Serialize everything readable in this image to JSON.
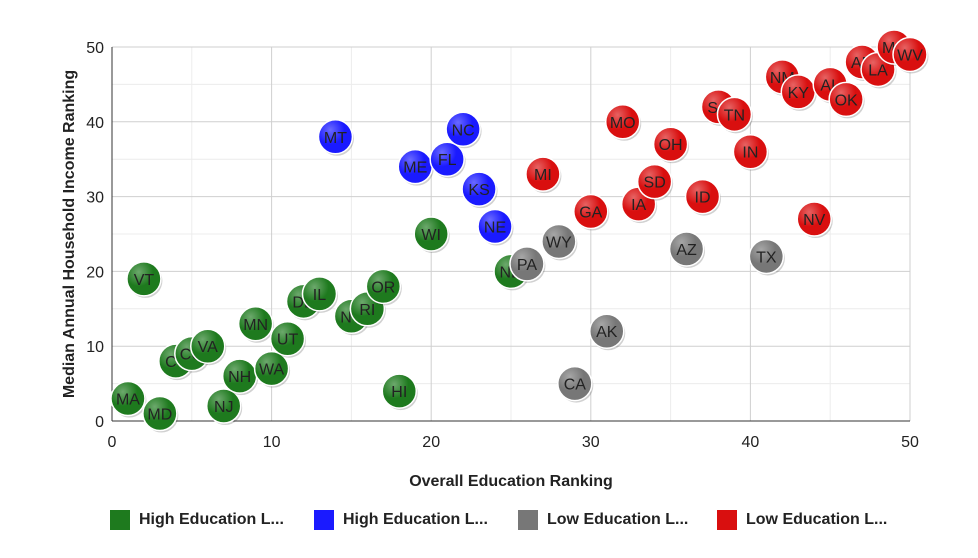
{
  "chart_data": {
    "type": "scatter",
    "xlabel": "Overall Education Ranking",
    "ylabel": "Median Annual Household Income Ranking",
    "xlim": [
      0,
      50
    ],
    "ylim": [
      0,
      50
    ],
    "xticks": [
      0,
      10,
      20,
      30,
      40,
      50
    ],
    "yticks": [
      0,
      10,
      20,
      30,
      40,
      50
    ],
    "grid": true,
    "legend_position": "bottom",
    "series": [
      {
        "name": "High Education L...",
        "color": "#1e7a1e",
        "points": [
          {
            "label": "MA",
            "x": 1,
            "y": 3
          },
          {
            "label": "VT",
            "x": 2,
            "y": 19
          },
          {
            "label": "MD",
            "x": 3,
            "y": 1
          },
          {
            "label": "CT",
            "x": 4,
            "y": 8
          },
          {
            "label": "CO",
            "x": 5,
            "y": 9
          },
          {
            "label": "VA",
            "x": 6,
            "y": 10
          },
          {
            "label": "NJ",
            "x": 7,
            "y": 2
          },
          {
            "label": "NH",
            "x": 8,
            "y": 6
          },
          {
            "label": "MN",
            "x": 9,
            "y": 13
          },
          {
            "label": "WA",
            "x": 10,
            "y": 7
          },
          {
            "label": "UT",
            "x": 11,
            "y": 11
          },
          {
            "label": "DE",
            "x": 12,
            "y": 16
          },
          {
            "label": "IL",
            "x": 13,
            "y": 17
          },
          {
            "label": "NY",
            "x": 15,
            "y": 14
          },
          {
            "label": "RI",
            "x": 16,
            "y": 15
          },
          {
            "label": "OR",
            "x": 17,
            "y": 18
          },
          {
            "label": "HI",
            "x": 18,
            "y": 4
          },
          {
            "label": "WI",
            "x": 20,
            "y": 25
          },
          {
            "label": "ND",
            "x": 25,
            "y": 20
          }
        ]
      },
      {
        "name": "High Education L...",
        "color": "#1a1aff",
        "points": [
          {
            "label": "MT",
            "x": 14,
            "y": 38
          },
          {
            "label": "ME",
            "x": 19,
            "y": 34
          },
          {
            "label": "FL",
            "x": 21,
            "y": 35
          },
          {
            "label": "NC",
            "x": 22,
            "y": 39
          },
          {
            "label": "KS",
            "x": 23,
            "y": 31
          },
          {
            "label": "NE",
            "x": 24,
            "y": 26
          }
        ]
      },
      {
        "name": "Low Education L...",
        "color": "#777777",
        "points": [
          {
            "label": "PA",
            "x": 26,
            "y": 21
          },
          {
            "label": "WY",
            "x": 28,
            "y": 24
          },
          {
            "label": "CA",
            "x": 29,
            "y": 5
          },
          {
            "label": "AK",
            "x": 31,
            "y": 12
          },
          {
            "label": "AZ",
            "x": 36,
            "y": 23
          },
          {
            "label": "TX",
            "x": 41,
            "y": 22
          }
        ]
      },
      {
        "name": "Low Education L...",
        "color": "#d90f0f",
        "points": [
          {
            "label": "MI",
            "x": 27,
            "y": 33
          },
          {
            "label": "GA",
            "x": 30,
            "y": 28
          },
          {
            "label": "MO",
            "x": 32,
            "y": 40
          },
          {
            "label": "IA",
            "x": 33,
            "y": 29
          },
          {
            "label": "SD",
            "x": 34,
            "y": 32
          },
          {
            "label": "OH",
            "x": 35,
            "y": 37
          },
          {
            "label": "ID",
            "x": 37,
            "y": 30
          },
          {
            "label": "SC",
            "x": 38,
            "y": 42
          },
          {
            "label": "TN",
            "x": 39,
            "y": 41
          },
          {
            "label": "IN",
            "x": 40,
            "y": 36
          },
          {
            "label": "NM",
            "x": 42,
            "y": 46
          },
          {
            "label": "KY",
            "x": 43,
            "y": 44
          },
          {
            "label": "NV",
            "x": 44,
            "y": 27
          },
          {
            "label": "AL",
            "x": 45,
            "y": 45
          },
          {
            "label": "OK",
            "x": 46,
            "y": 43
          },
          {
            "label": "AR",
            "x": 47,
            "y": 48
          },
          {
            "label": "LA",
            "x": 48,
            "y": 47
          },
          {
            "label": "MS",
            "x": 49,
            "y": 50
          },
          {
            "label": "WV",
            "x": 50,
            "y": 49
          }
        ]
      }
    ]
  }
}
